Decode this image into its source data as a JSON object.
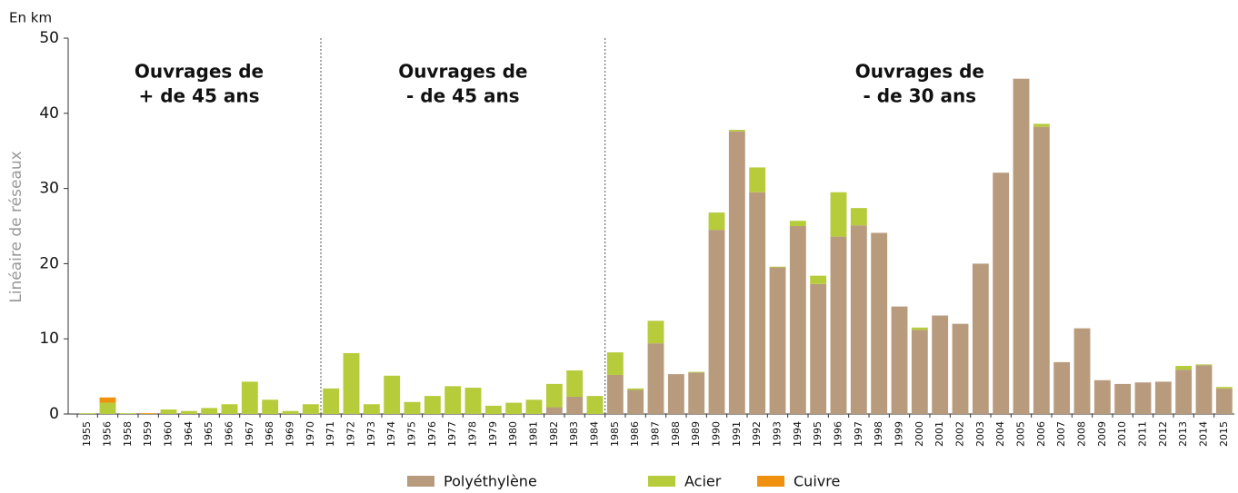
{
  "chart_data": {
    "type": "bar",
    "stacked": true,
    "unit_label": "En km",
    "y_label": "Linéaire de réseaux",
    "annotations": [
      [
        "Ouvrages de",
        "+ de 45 ans"
      ],
      [
        "Ouvrages de",
        "- de 45 ans"
      ],
      [
        "Ouvrages de",
        "- de 30 ans"
      ]
    ],
    "categories": [
      "1955",
      "1956",
      "1958",
      "1959",
      "1960",
      "1964",
      "1965",
      "1966",
      "1967",
      "1968",
      "1969",
      "1970",
      "1971",
      "1972",
      "1973",
      "1974",
      "1975",
      "1976",
      "1977",
      "1978",
      "1979",
      "1980",
      "1981",
      "1982",
      "1983",
      "1984",
      "1985",
      "1986",
      "1987",
      "1988",
      "1989",
      "1990",
      "1991",
      "1992",
      "1993",
      "1994",
      "1995",
      "1996",
      "1997",
      "1998",
      "1999",
      "2000",
      "2001",
      "2002",
      "2003",
      "2004",
      "2005",
      "2006",
      "2007",
      "2008",
      "2009",
      "2010",
      "2011",
      "2012",
      "2013",
      "2014",
      "2015"
    ],
    "series": [
      {
        "name": "Polyéthylène",
        "color": "#b89b7d",
        "values": [
          0,
          0,
          0,
          0,
          0,
          0,
          0,
          0,
          0,
          0,
          0,
          0,
          0,
          0,
          0,
          0,
          0,
          0,
          0,
          0,
          0,
          0,
          0,
          0.9,
          2.3,
          0,
          5.2,
          3.2,
          9.4,
          5.3,
          5.5,
          24.5,
          37.6,
          29.5,
          19.5,
          25,
          17.3,
          23.6,
          25.1,
          24.1,
          14.3,
          11.2,
          13.1,
          12,
          20,
          32.1,
          44.6,
          38.2,
          6.9,
          11.4,
          4.5,
          4,
          4.2,
          4.3,
          5.9,
          6.5,
          3.4
        ]
      },
      {
        "name": "Acier",
        "color": "#b6cc3b",
        "values": [
          0.1,
          1.5,
          0.1,
          0,
          0.6,
          0.4,
          0.8,
          1.3,
          4.3,
          1.9,
          0.4,
          1.3,
          3.4,
          8.1,
          1.3,
          5.1,
          1.6,
          2.4,
          3.7,
          3.5,
          1.1,
          1.5,
          1.9,
          3.1,
          3.5,
          2.4,
          3.0,
          0.2,
          3.0,
          0,
          0.1,
          2.3,
          0.2,
          3.3,
          0.1,
          0.7,
          1.1,
          5.9,
          2.3,
          0,
          0,
          0.3,
          0,
          0,
          0,
          0,
          0,
          0.4,
          0,
          0,
          0,
          0,
          0,
          0,
          0.5,
          0.1,
          0.2
        ]
      },
      {
        "name": "Cuivre",
        "color": "#f0900f",
        "values": [
          0,
          0.7,
          0,
          0.1,
          0,
          0,
          0,
          0,
          0,
          0,
          0,
          0,
          0,
          0,
          0,
          0,
          0,
          0,
          0,
          0,
          0,
          0,
          0,
          0,
          0,
          0,
          0,
          0,
          0,
          0,
          0,
          0,
          0,
          0,
          0,
          0,
          0,
          0,
          0,
          0,
          0,
          0,
          0,
          0,
          0,
          0,
          0,
          0,
          0,
          0,
          0,
          0,
          0,
          0,
          0,
          0,
          0
        ]
      }
    ],
    "ylim": [
      0,
      50
    ],
    "yticks": [
      0,
      10,
      20,
      30,
      40,
      50
    ]
  }
}
